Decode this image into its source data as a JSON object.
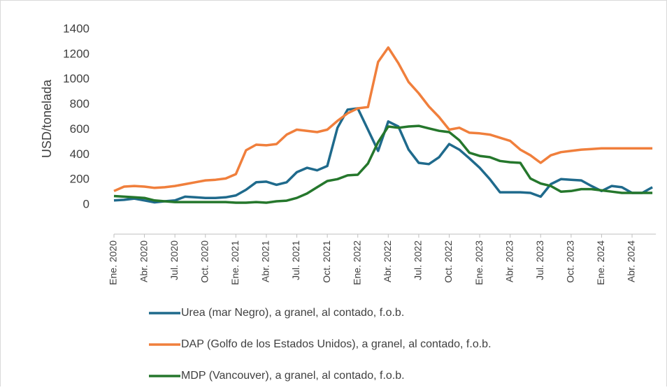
{
  "chart_data": {
    "type": "line",
    "y_label": "USD/tonelada",
    "categories": [
      "Ene. 2020",
      null,
      null,
      "Abr. 2020",
      null,
      null,
      "Jul. 2020",
      null,
      null,
      "Oct. 2020",
      null,
      null,
      "Ene. 2021",
      null,
      null,
      "Abr. 2021",
      null,
      null,
      "Jul. 2021",
      null,
      null,
      "Oct. 2021",
      null,
      null,
      "Ene. 2022",
      null,
      null,
      "Abr. 2022",
      null,
      null,
      "Jul. 2022",
      null,
      null,
      "Oct. 2022",
      null,
      null,
      "Ene. 2023",
      null,
      null,
      "Abr. 2023",
      null,
      null,
      "Jul. 2023",
      null,
      null,
      "Oct. 2023",
      null,
      null,
      "Ene. 2024",
      null,
      null,
      "Abr. 2024",
      null,
      null
    ],
    "series": [
      {
        "name": "Urea (mar Negro), a granel, al contado, f.o.b.",
        "color": "#1f6a8c",
        "values": [
          35,
          40,
          50,
          35,
          20,
          28,
          35,
          65,
          60,
          55,
          55,
          60,
          75,
          120,
          180,
          185,
          160,
          180,
          260,
          295,
          275,
          310,
          615,
          760,
          770,
          600,
          430,
          665,
          625,
          440,
          335,
          325,
          380,
          485,
          440,
          370,
          295,
          205,
          100,
          100,
          100,
          95,
          65,
          165,
          205,
          200,
          195,
          150,
          110,
          150,
          140,
          95,
          95,
          140
        ]
      },
      {
        "name": "DAP (Golfo de los Estados Unidos), a granel, al contado, f.o.b.",
        "color": "#f07f3c",
        "values": [
          110,
          145,
          150,
          145,
          135,
          140,
          150,
          165,
          180,
          195,
          200,
          210,
          245,
          435,
          480,
          475,
          485,
          560,
          600,
          590,
          580,
          600,
          670,
          730,
          770,
          780,
          1140,
          1255,
          1130,
          980,
          890,
          785,
          700,
          600,
          615,
          575,
          570,
          560,
          535,
          510,
          440,
          395,
          335,
          395,
          420,
          430,
          440,
          445,
          450,
          450,
          450,
          450,
          450,
          450
        ]
      },
      {
        "name": "MDP (Vancouver), a granel, al contado, f.o.b.",
        "color": "#25772c",
        "values": [
          70,
          65,
          60,
          55,
          35,
          28,
          22,
          22,
          22,
          22,
          22,
          22,
          17,
          17,
          22,
          17,
          28,
          33,
          55,
          90,
          140,
          190,
          205,
          235,
          240,
          330,
          500,
          625,
          615,
          625,
          630,
          610,
          590,
          580,
          515,
          415,
          390,
          380,
          350,
          340,
          335,
          210,
          170,
          150,
          105,
          110,
          125,
          125,
          115,
          105,
          95,
          95,
          95,
          95
        ]
      }
    ],
    "ylim": [
      -234,
      1400
    ],
    "yticks": [
      0,
      200,
      400,
      600,
      800,
      1000,
      1200,
      1400
    ],
    "grid": false,
    "legend": "bottom"
  }
}
